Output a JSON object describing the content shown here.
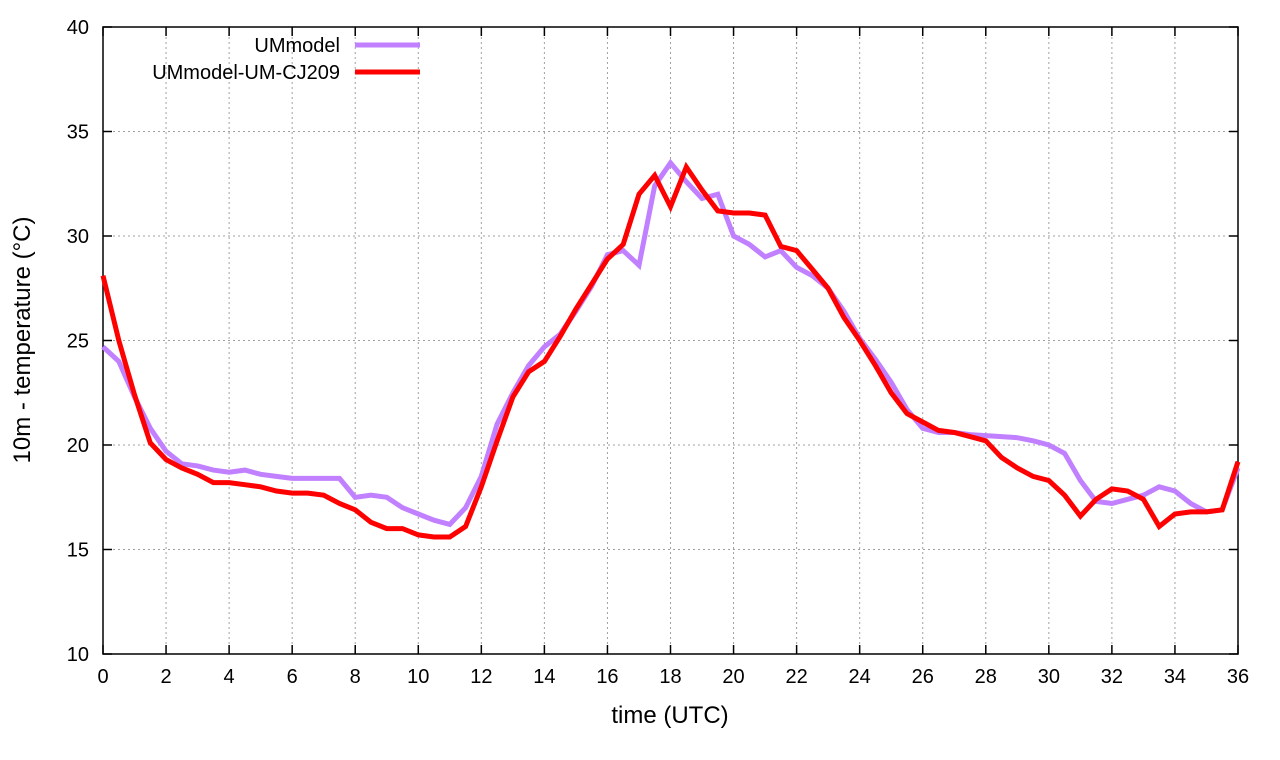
{
  "chart_data": {
    "type": "line",
    "title": "",
    "xlabel": "time (UTC)",
    "ylabel": "10m - temperature (°C)",
    "xlim": [
      0,
      36
    ],
    "ylim": [
      10,
      40
    ],
    "xticks": [
      0,
      2,
      4,
      6,
      8,
      10,
      12,
      14,
      16,
      18,
      20,
      22,
      24,
      26,
      28,
      30,
      32,
      34,
      36
    ],
    "yticks": [
      10,
      15,
      20,
      25,
      30,
      35,
      40
    ],
    "grid": true,
    "legend_position": "top-left",
    "x_step": 0.5,
    "series": [
      {
        "name": "UMmodel",
        "color": "#c080ff",
        "values": [
          24.7,
          24.0,
          22.3,
          20.8,
          19.7,
          19.1,
          19.0,
          18.8,
          18.7,
          18.8,
          18.6,
          18.5,
          18.4,
          18.4,
          18.4,
          18.4,
          17.5,
          17.6,
          17.5,
          17.0,
          16.7,
          16.4,
          16.2,
          17.0,
          18.5,
          21.0,
          22.5,
          23.8,
          24.7,
          25.3,
          26.4,
          27.6,
          29.1,
          29.3,
          28.6,
          32.4,
          33.5,
          32.6,
          31.8,
          32.0,
          30.0,
          29.6,
          29.0,
          29.3,
          28.5,
          28.1,
          27.5,
          26.4,
          25.1,
          24.1,
          23.0,
          21.7,
          20.8,
          20.6,
          20.6,
          20.5,
          20.45,
          20.4,
          20.35,
          20.2,
          20.0,
          19.6,
          18.3,
          17.3,
          17.2,
          17.4,
          17.6,
          18.0,
          17.8,
          17.2,
          16.8,
          16.9,
          18.9
        ]
      },
      {
        "name": "UMmodel-UM-CJ209",
        "color": "#ff0000",
        "values": [
          28.1,
          25.0,
          22.4,
          20.1,
          19.3,
          18.9,
          18.6,
          18.2,
          18.2,
          18.1,
          18.0,
          17.8,
          17.7,
          17.7,
          17.6,
          17.2,
          16.9,
          16.3,
          16.0,
          16.0,
          15.7,
          15.6,
          15.6,
          16.1,
          18.0,
          20.2,
          22.3,
          23.5,
          24.0,
          25.2,
          26.5,
          27.7,
          28.9,
          29.6,
          32.0,
          32.9,
          31.4,
          33.3,
          32.2,
          31.2,
          31.1,
          31.1,
          31.0,
          29.5,
          29.3,
          28.4,
          27.5,
          26.1,
          25.0,
          23.8,
          22.5,
          21.5,
          21.1,
          20.7,
          20.6,
          20.4,
          20.2,
          19.4,
          18.9,
          18.5,
          18.3,
          17.6,
          16.6,
          17.4,
          17.9,
          17.8,
          17.4,
          16.1,
          16.7,
          16.8,
          16.8,
          16.9,
          19.2
        ]
      }
    ]
  }
}
